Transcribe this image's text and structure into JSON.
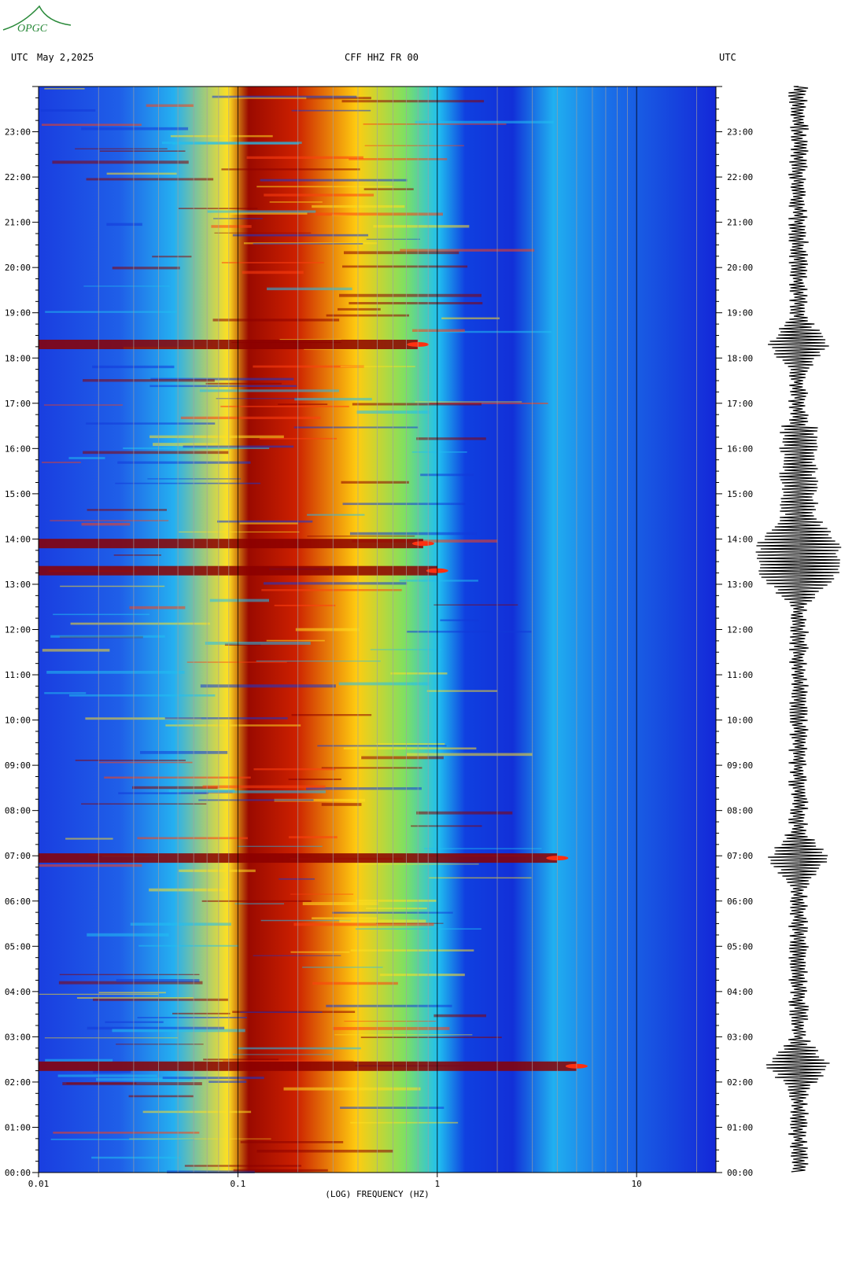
{
  "header": {
    "left_tz": "UTC",
    "date": "May 2,2025",
    "station": "CFF HHZ FR 00",
    "right_tz": "UTC"
  },
  "logo": {
    "text": "OPGC"
  },
  "colors": {
    "low": "#1010e0",
    "mid": "#20d0f0",
    "high": "#f0f020",
    "higher": "#ff6010",
    "max": "#8b0000"
  },
  "chart_data": {
    "type": "heatmap",
    "title": "CFF HHZ FR 00",
    "xlabel": "(LOG) FREQUENCY (HZ)",
    "ylabel": "UTC",
    "x_scale": "log",
    "xlim": [
      0.01,
      25
    ],
    "x_ticks": [
      {
        "value": 0.01,
        "label": "0.01"
      },
      {
        "value": 0.1,
        "label": "0.1"
      },
      {
        "value": 1,
        "label": "1"
      },
      {
        "value": 10,
        "label": "10"
      }
    ],
    "ylim": [
      0,
      24
    ],
    "y_ticks": [
      {
        "value": 0,
        "label": "00:00"
      },
      {
        "value": 1,
        "label": "01:00"
      },
      {
        "value": 2,
        "label": "02:00"
      },
      {
        "value": 3,
        "label": "03:00"
      },
      {
        "value": 4,
        "label": "04:00"
      },
      {
        "value": 5,
        "label": "05:00"
      },
      {
        "value": 6,
        "label": "06:00"
      },
      {
        "value": 7,
        "label": "07:00"
      },
      {
        "value": 8,
        "label": "08:00"
      },
      {
        "value": 9,
        "label": "09:00"
      },
      {
        "value": 10,
        "label": "10:00"
      },
      {
        "value": 11,
        "label": "11:00"
      },
      {
        "value": 12,
        "label": "12:00"
      },
      {
        "value": 13,
        "label": "13:00"
      },
      {
        "value": 14,
        "label": "14:00"
      },
      {
        "value": 15,
        "label": "15:00"
      },
      {
        "value": 16,
        "label": "16:00"
      },
      {
        "value": 17,
        "label": "17:00"
      },
      {
        "value": 18,
        "label": "18:00"
      },
      {
        "value": 19,
        "label": "19:00"
      },
      {
        "value": 20,
        "label": "20:00"
      },
      {
        "value": 21,
        "label": "21:00"
      },
      {
        "value": 22,
        "label": "22:00"
      },
      {
        "value": 23,
        "label": "23:00"
      }
    ],
    "events": [
      {
        "time": 13.3,
        "peak_freq": 1.0
      },
      {
        "time": 13.9,
        "peak_freq": 0.85
      },
      {
        "time": 18.3,
        "peak_freq": 0.8
      },
      {
        "time": 6.95,
        "peak_freq": 4.0
      },
      {
        "time": 2.35,
        "peak_freq": 5.0
      }
    ],
    "grid": true
  }
}
